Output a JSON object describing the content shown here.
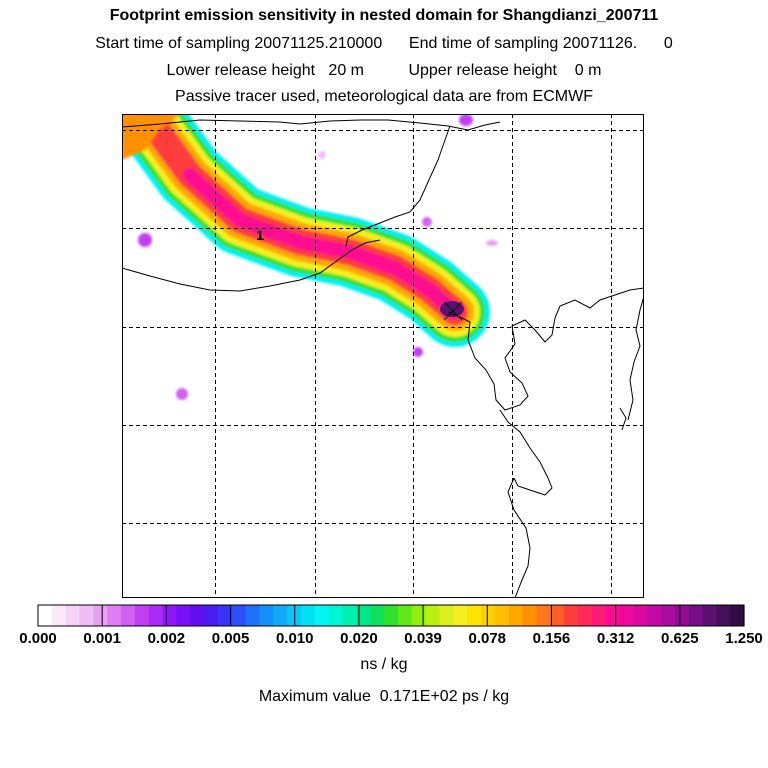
{
  "header": {
    "title": "Footprint emission sensitivity in nested domain for Shangdianzi_200711",
    "sampling_line": "Start time of sampling 20071125.210000      End time of sampling 20071126.      0",
    "release_line": "Lower release height   20 m          Upper release height    0 m",
    "tracer_line": "Passive tracer used, meteorological data are from ECMWF"
  },
  "map": {
    "release_marker_label": "1"
  },
  "colorbar": {
    "tick_labels": [
      "0.000",
      "0.001",
      "0.002",
      "0.005",
      "0.010",
      "0.020",
      "0.039",
      "0.078",
      "0.156",
      "0.312",
      "0.625",
      "1.250"
    ],
    "colors": [
      "#ffffff",
      "#fbe9fb",
      "#f6d3f7",
      "#f0bdf4",
      "#e8a0f0",
      "#dd7ff0",
      "#d060f0",
      "#c040f0",
      "#a82af5",
      "#9018f8",
      "#7810f8",
      "#6010f0",
      "#4a1cf0",
      "#3a32f5",
      "#2b50f8",
      "#1e70fa",
      "#158ffa",
      "#10aaf8",
      "#0cc5f5",
      "#00e2f2",
      "#00f6f0",
      "#00f5d2",
      "#00f0b0",
      "#00e68a",
      "#10e060",
      "#30e030",
      "#60e818",
      "#90ee10",
      "#b8f010",
      "#dcf020",
      "#f4f020",
      "#ffe400",
      "#ffd000",
      "#ffbe00",
      "#ffa800",
      "#ff9000",
      "#ff7818",
      "#ff5c28",
      "#ff3c3c",
      "#ff2a5a",
      "#ff1a7a",
      "#ff0a90",
      "#f0089a",
      "#dc08a0",
      "#c408a4",
      "#ac0aa0",
      "#940c96",
      "#780e86",
      "#5c1070",
      "#441058",
      "#300c40"
    ],
    "units": "ns / kg",
    "max_value": "Maximum value  0.171E+02 ps / kg"
  }
}
